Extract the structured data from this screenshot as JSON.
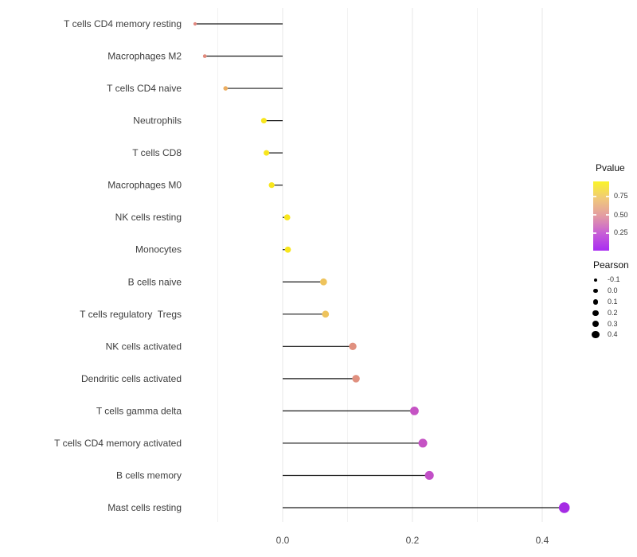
{
  "chart_data": {
    "type": "scatter",
    "subtype": "lollipop",
    "title": "",
    "xlabel": "",
    "ylabel": "",
    "xlim": [
      -0.165,
      0.46
    ],
    "grid": true,
    "x_major_ticks": [
      {
        "value": 0.0,
        "label": "0.0"
      },
      {
        "value": 0.2,
        "label": "0.2"
      },
      {
        "value": 0.4,
        "label": "0.4"
      }
    ],
    "x_minor_gridlines": [
      -0.1,
      0.1,
      0.3
    ],
    "points": [
      {
        "label": "T cells CD4 memory resting",
        "pearson": -0.135,
        "pvalue": 0.55,
        "color": "#e2887f"
      },
      {
        "label": "Macrophages M2",
        "pearson": -0.12,
        "pvalue": 0.55,
        "color": "#e28a7c"
      },
      {
        "label": "T cells CD4 naive",
        "pearson": -0.088,
        "pvalue": 0.68,
        "color": "#ecae61"
      },
      {
        "label": "Neutrophils",
        "pearson": -0.029,
        "pvalue": 0.9,
        "color": "#f8e61d"
      },
      {
        "label": "T cells CD8",
        "pearson": -0.025,
        "pvalue": 0.9,
        "color": "#f8e61d"
      },
      {
        "label": "Macrophages M0",
        "pearson": -0.017,
        "pvalue": 0.9,
        "color": "#f8e61d"
      },
      {
        "label": "NK cells resting",
        "pearson": 0.007,
        "pvalue": 0.9,
        "color": "#f8e61d"
      },
      {
        "label": "Monocytes",
        "pearson": 0.008,
        "pvalue": 0.9,
        "color": "#f8e61d"
      },
      {
        "label": "B cells naive",
        "pearson": 0.063,
        "pvalue": 0.76,
        "color": "#eec35c"
      },
      {
        "label": "T cells regulatory  Tregs",
        "pearson": 0.066,
        "pvalue": 0.76,
        "color": "#eec35c"
      },
      {
        "label": "NK cells activated",
        "pearson": 0.108,
        "pvalue": 0.56,
        "color": "#e0907f"
      },
      {
        "label": "Dendritic cells activated",
        "pearson": 0.113,
        "pvalue": 0.56,
        "color": "#e0907f"
      },
      {
        "label": "T cells gamma delta",
        "pearson": 0.203,
        "pvalue": 0.29,
        "color": "#c553c4"
      },
      {
        "label": "T cells CD4 memory activated",
        "pearson": 0.216,
        "pvalue": 0.29,
        "color": "#c553c4"
      },
      {
        "label": "B cells memory",
        "pearson": 0.226,
        "pvalue": 0.28,
        "color": "#c24fc7"
      },
      {
        "label": "Mast cells resting",
        "pearson": 0.434,
        "pvalue": 0.05,
        "color": "#a52ce4"
      }
    ]
  },
  "legend": {
    "pvalue": {
      "title": "Pvalue",
      "ticks": [
        {
          "label": "0.75",
          "frac_from_top": 0.218
        },
        {
          "label": "0.50",
          "frac_from_top": 0.483
        },
        {
          "label": "0.25",
          "frac_from_top": 0.747
        }
      ],
      "gradient_bottom_to_top": [
        "#a92cf2",
        "#c75ed6",
        "#e39ba3",
        "#f0c87b",
        "#faf428"
      ]
    },
    "pearson": {
      "title": "Pearson",
      "dot_color": "#000000",
      "items": [
        {
          "label": "-0.1",
          "value": -0.1
        },
        {
          "label": "0.0",
          "value": 0.0
        },
        {
          "label": "0.1",
          "value": 0.1
        },
        {
          "label": "0.2",
          "value": 0.2
        },
        {
          "label": "0.3",
          "value": 0.3
        },
        {
          "label": "0.4",
          "value": 0.4
        }
      ]
    }
  },
  "colors": {
    "stem": "#1a1a1a",
    "grid_major": "#e7e7e7",
    "grid_minor": "#f2f2f2",
    "axis_text": "#3d3d3d",
    "tick_text": "#4d4d4d"
  }
}
